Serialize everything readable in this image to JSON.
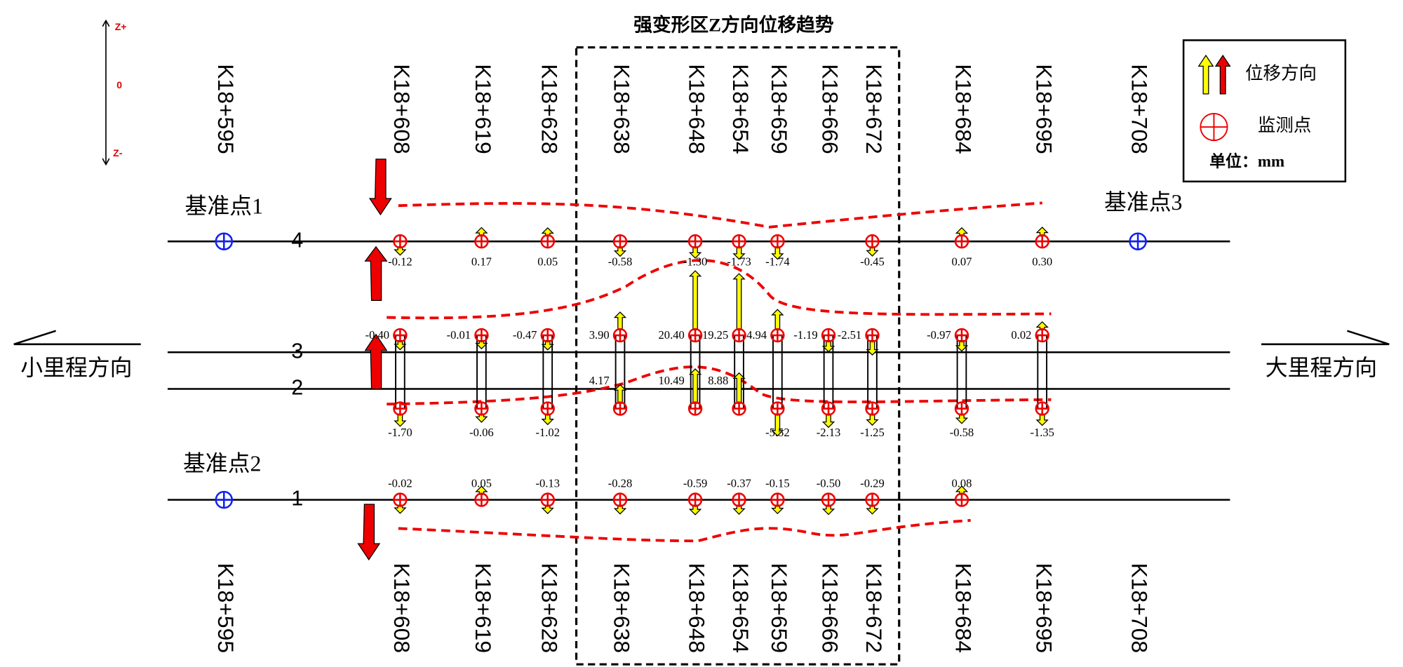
{
  "title": "强变形区Z方向位移趋势",
  "z_axis": {
    "top": "Z+",
    "middle": "0",
    "bottom": "Z-"
  },
  "legend": {
    "direction": "位移方向",
    "point": "监测点",
    "unit": "单位：mm"
  },
  "directions": {
    "left": "小里程方向",
    "right": "大里程方向"
  },
  "reference_points": [
    "基准点1",
    "基准点2",
    "基准点3"
  ],
  "stations": [
    "K18+595",
    "K18+608",
    "K18+619",
    "K18+628",
    "K18+638",
    "K18+648",
    "K18+654",
    "K18+659",
    "K18+666",
    "K18+672",
    "K18+684",
    "K18+695",
    "K18+708"
  ],
  "lines": [
    {
      "label": "4",
      "values": [
        null,
        "-0.12",
        "0.17",
        "0.05",
        "-0.58",
        "-1.30",
        "-1.73",
        "-1.74",
        null,
        "-0.45",
        "0.07",
        "0.30",
        null
      ]
    },
    {
      "label": "3",
      "values": [
        null,
        "-0.40",
        "-0.01",
        "-0.47",
        "3.90",
        "20.40",
        "19.25",
        "4.94",
        "-1.19",
        "-2.51",
        "-0.97",
        "0.02",
        null
      ]
    },
    {
      "label": "2",
      "values": [
        null,
        "-1.70",
        "-0.06",
        "-1.02",
        "4.17",
        "10.49",
        "8.88",
        "-5.52",
        "-2.13",
        "-1.25",
        "-0.58",
        "-1.35",
        null
      ]
    },
    {
      "label": "1",
      "values": [
        null,
        "-0.02",
        "0.05",
        "-0.13",
        "-0.28",
        "-0.59",
        "-0.37",
        "-0.15",
        "-0.50",
        "-0.29",
        "0.08",
        null,
        null
      ]
    }
  ]
}
